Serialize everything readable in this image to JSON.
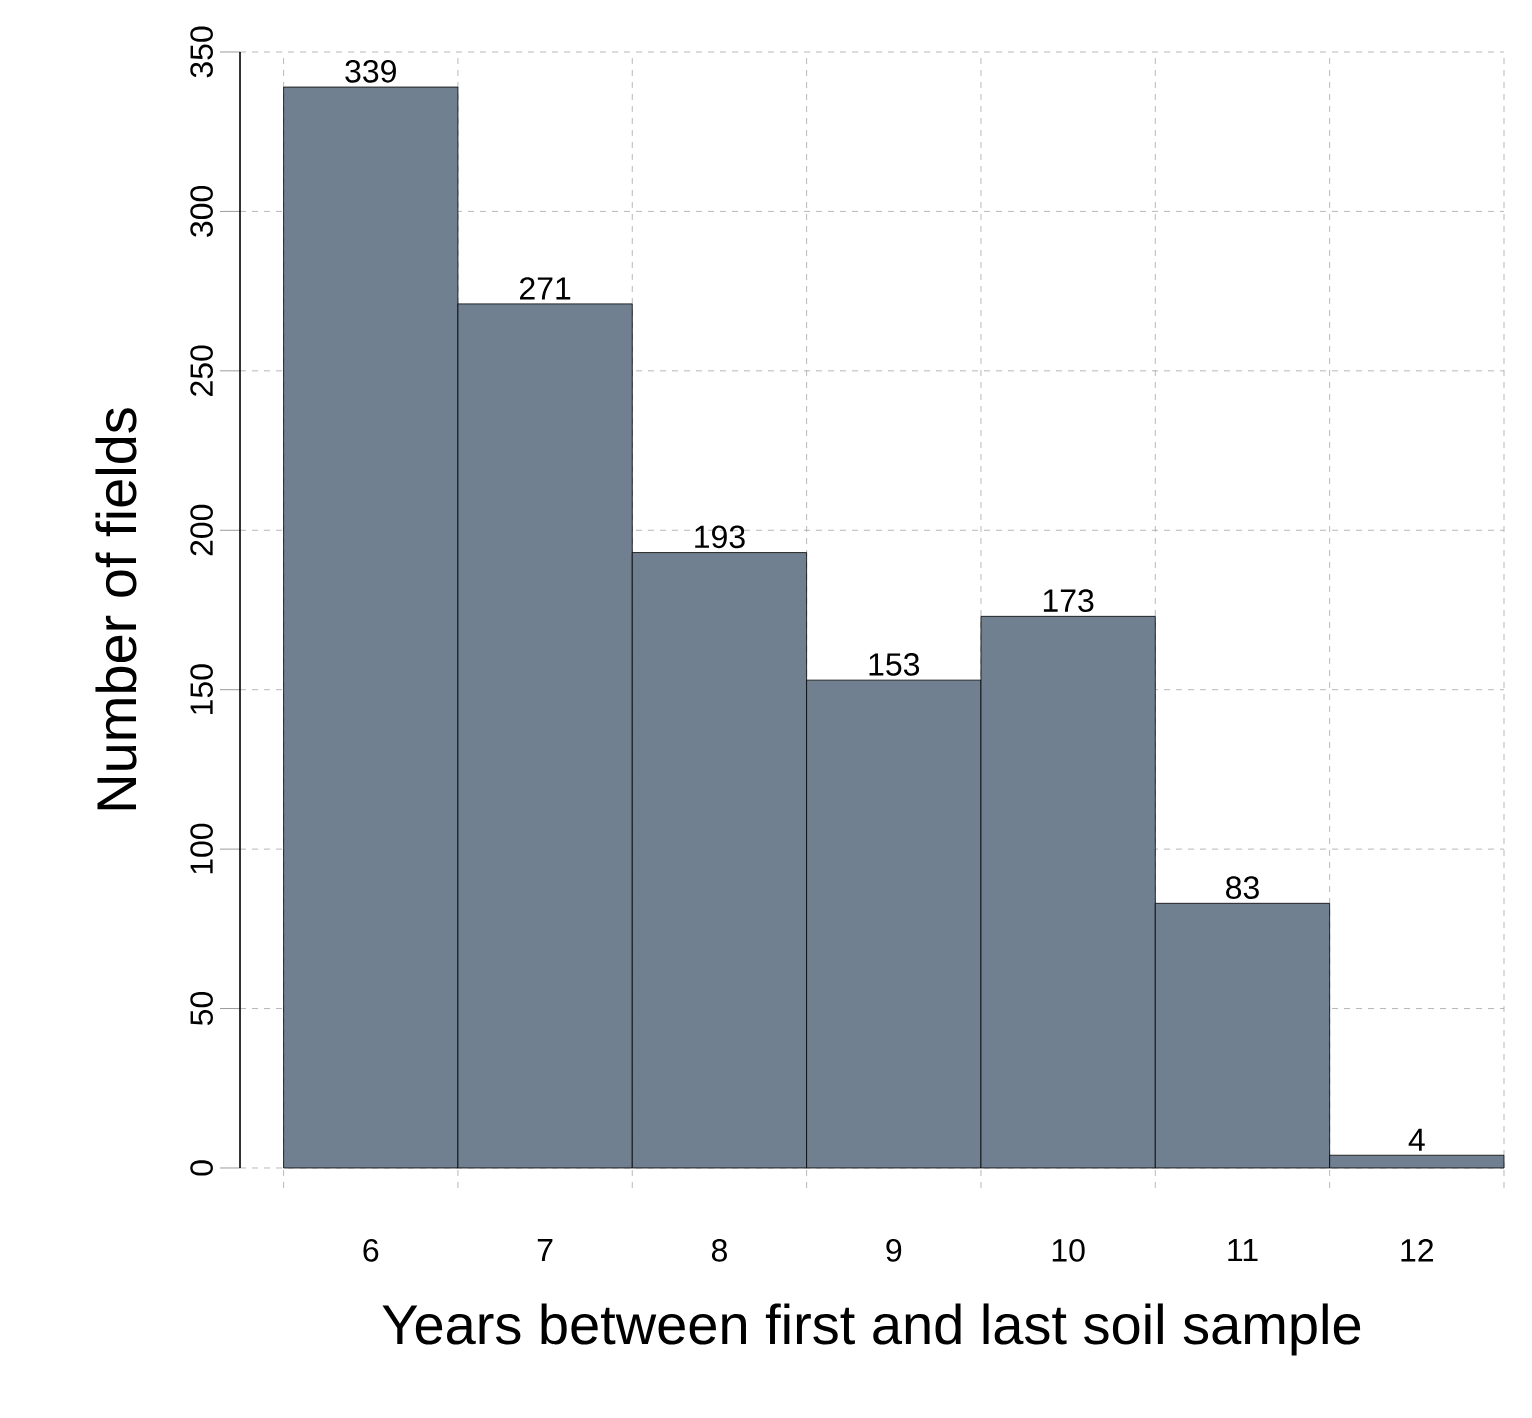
{
  "chart_data": {
    "type": "bar",
    "xlabel": "Years between first and last soil sample",
    "ylabel": "Number of fields",
    "categories": [
      "6",
      "7",
      "8",
      "9",
      "10",
      "11",
      "12"
    ],
    "values": [
      339,
      271,
      193,
      153,
      173,
      83,
      4
    ],
    "color": "#708090",
    "ylim": [
      0,
      350
    ],
    "yticks": [
      0,
      50,
      100,
      150,
      200,
      250,
      300,
      350
    ],
    "grid": true,
    "data_labels": true
  }
}
